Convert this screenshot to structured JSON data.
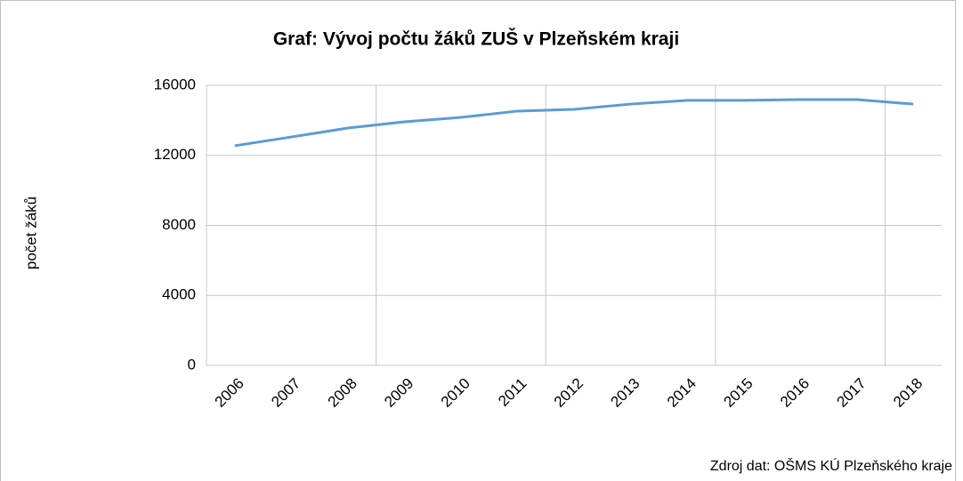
{
  "chart_data": {
    "type": "line",
    "title": "Graf: Vývoj počtu žáků ZUŠ  v Plzeňském kraji",
    "y_label": "počet žáků",
    "source": "Zdroj dat: OŠMS  KÚ  Plzeňského  kraje",
    "categories": [
      "2006",
      "2007",
      "2008",
      "2009",
      "2010",
      "2011",
      "2012",
      "2013",
      "2014",
      "2015",
      "2016",
      "2017",
      "2018"
    ],
    "series": [
      {
        "name": "počet žáků",
        "color": "#5b9bd5",
        "values": [
          12550,
          13050,
          13560,
          13920,
          14170,
          14530,
          14630,
          14930,
          15140,
          15140,
          15190,
          15190,
          14930
        ]
      }
    ],
    "ylim": [
      0,
      16000
    ],
    "yticks": [
      0,
      4000,
      8000,
      12000,
      16000
    ],
    "grid": true,
    "xgrid_every": 3
  }
}
